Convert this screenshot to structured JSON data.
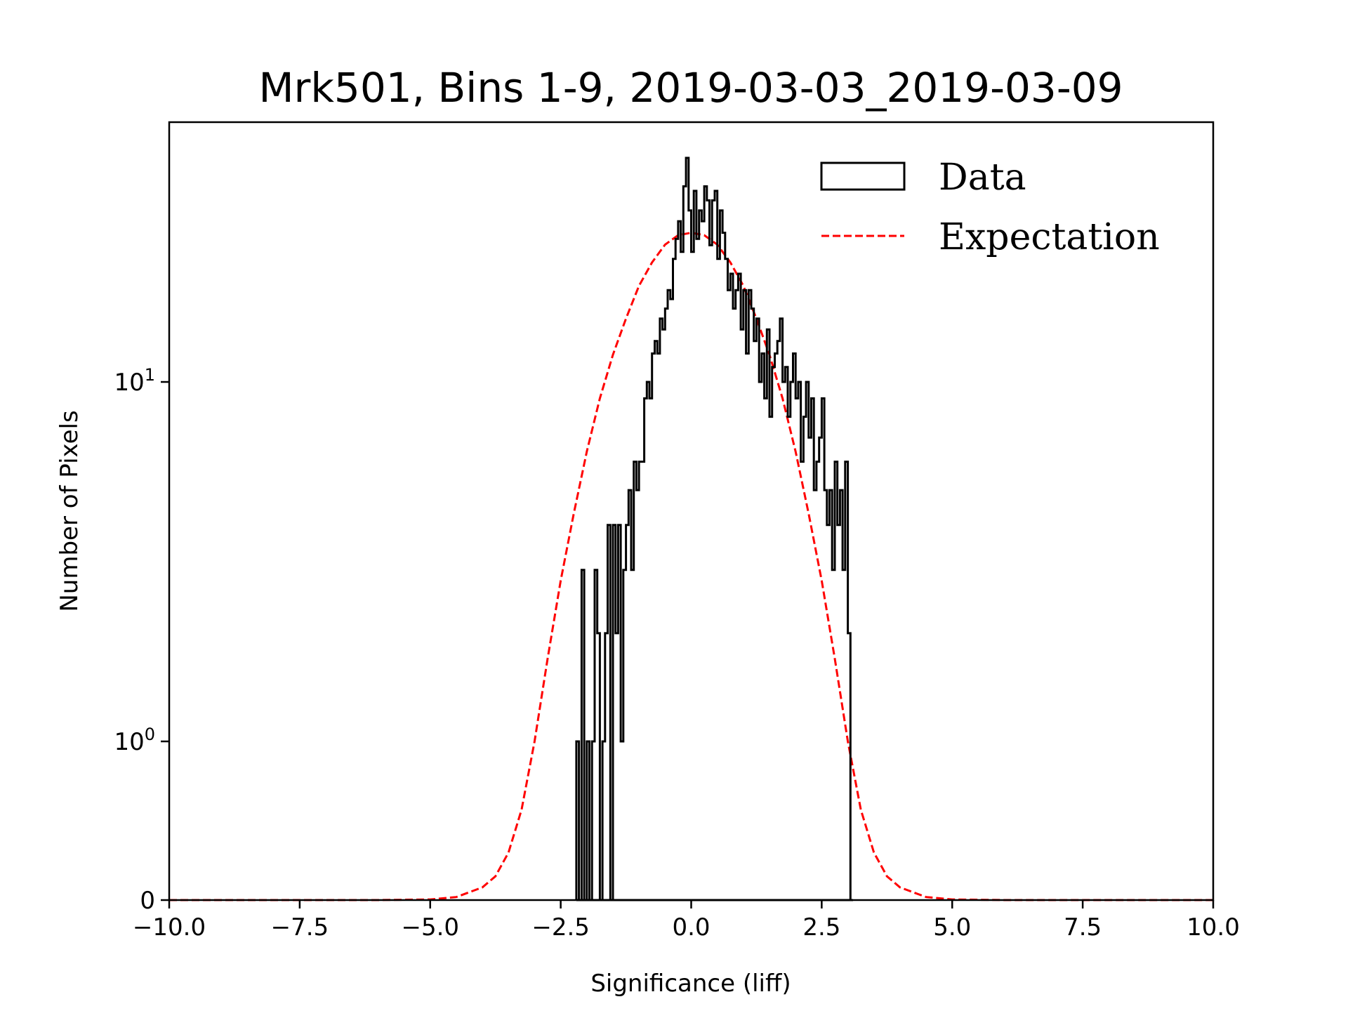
{
  "chart_data": {
    "type": "histogram",
    "title": "Mrk501, Bins 1-9, 2019-03-03_2019-03-09",
    "xlabel": "Significance (liff)",
    "ylabel": "Number of Pixels",
    "xlim": [
      -10.0,
      10.0
    ],
    "ylim": [
      0,
      53
    ],
    "yscale": "symlog",
    "linthresh": 1,
    "xticks": [
      -10.0,
      -7.5,
      -5.0,
      -2.5,
      0.0,
      2.5,
      5.0,
      7.5,
      10.0
    ],
    "xtick_labels": [
      "−10.0",
      "−7.5",
      "−5.0",
      "−2.5",
      "0.0",
      "2.5",
      "5.0",
      "7.5",
      "10.0"
    ],
    "yticks": [
      {
        "value": 0,
        "label": "0",
        "sup": ""
      },
      {
        "value": 1,
        "label": "10",
        "sup": "0"
      },
      {
        "value": 10,
        "label": "10",
        "sup": "1"
      }
    ],
    "grid": false,
    "legend": {
      "position": "top-right",
      "entries": [
        {
          "label": "Data",
          "style": "step",
          "color": "#000000"
        },
        {
          "label": "Expectation",
          "style": "dashed",
          "color": "#ff0000"
        }
      ]
    },
    "series": [
      {
        "name": "Data",
        "kind": "step-histogram",
        "color": "#000000",
        "bin_start": -2.2,
        "bin_width": 0.05,
        "values": [
          1,
          0,
          3,
          0,
          1,
          0,
          1,
          3,
          2,
          0,
          1,
          2,
          4,
          0,
          4,
          2,
          4,
          1,
          3,
          4,
          5,
          3,
          6,
          5,
          6,
          6,
          9,
          10,
          9,
          12,
          13,
          12,
          15,
          14,
          16,
          18,
          17,
          22,
          25,
          28,
          23,
          35,
          42,
          30,
          23,
          34,
          25,
          30,
          28,
          35,
          32,
          24,
          32,
          34,
          22,
          30,
          26,
          22,
          18,
          20,
          16,
          18,
          20,
          14,
          18,
          12,
          18,
          16,
          13,
          15,
          10,
          12,
          9,
          14,
          8,
          11,
          12,
          13,
          15,
          10,
          11,
          8,
          10,
          12,
          9,
          10,
          6,
          8,
          10,
          7,
          9,
          5,
          6,
          7,
          9,
          5,
          4,
          5,
          3,
          6,
          4,
          5,
          3,
          6,
          2,
          0
        ]
      },
      {
        "name": "Expectation",
        "kind": "line",
        "color": "#ff0000",
        "x": [
          -10,
          -6,
          -5,
          -4.5,
          -4,
          -3.75,
          -3.5,
          -3.25,
          -3,
          -2.75,
          -2.5,
          -2.25,
          -2,
          -1.75,
          -1.5,
          -1.25,
          -1,
          -0.75,
          -0.5,
          -0.25,
          0,
          0.25,
          0.5,
          0.75,
          1,
          1.25,
          1.5,
          1.75,
          2,
          2.25,
          2.5,
          2.75,
          3,
          3.25,
          3.5,
          3.75,
          4,
          4.5,
          5,
          6,
          10
        ],
        "y": [
          0,
          0,
          0.004,
          0.019,
          0.08,
          0.15,
          0.3,
          0.57,
          1.0,
          1.7,
          2.8,
          4.3,
          6.4,
          9.0,
          11.9,
          15.0,
          18.5,
          21.5,
          24.1,
          25.6,
          26.0,
          25.6,
          24.1,
          21.5,
          18.5,
          15.0,
          11.9,
          9.0,
          6.4,
          4.3,
          2.8,
          1.7,
          1.0,
          0.57,
          0.3,
          0.15,
          0.08,
          0.019,
          0.004,
          0,
          0
        ]
      }
    ]
  }
}
